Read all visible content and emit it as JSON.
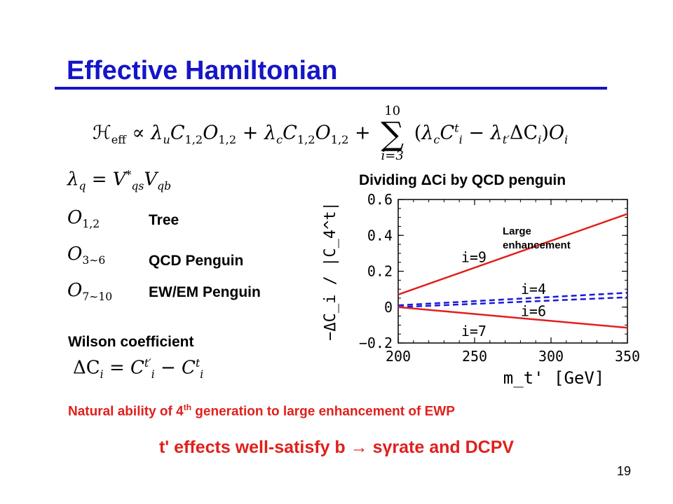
{
  "slide": {
    "title": "Effective Hamiltonian",
    "hamiltonian": {
      "lhs": "ℋ",
      "lhs_sub": "eff",
      "prop": "∝",
      "term1": "λ",
      "term1_sub": "u",
      "c12": "C",
      "c12_sub": "1,2",
      "o12": "O",
      "o12_sub": "1,2",
      "plus": "+",
      "term2": "λ",
      "term2_sub": "c",
      "sum_upper": "10",
      "sum_symbol": "∑",
      "sum_lower": "i=3",
      "paren_open": "(",
      "lam_c": "λ",
      "lam_c_sub": "c",
      "ci": "C",
      "ci_sub": "i",
      "ci_sup": "t",
      "minus": "−",
      "lam_tp": "λ",
      "lam_tp_sub": "t′",
      "delta_ci": "ΔC",
      "delta_ci_sub": "i",
      "paren_close": ")",
      "oi": "O",
      "oi_sub": "i"
    },
    "lambda_def": {
      "lhs": "λ",
      "lhs_sub": "q",
      "eq": "=",
      "v1": "V",
      "v1_sup": "*",
      "v1_sub": "qs",
      "v2": "V",
      "v2_sub": "qb"
    },
    "operators": [
      {
        "symbol": "O",
        "sub": "1,2",
        "label": "Tree"
      },
      {
        "symbol": "O",
        "sub": "3∼6",
        "label": "QCD Penguin"
      },
      {
        "symbol": "O",
        "sub": "7∼10",
        "label": "EW/EM Penguin"
      }
    ],
    "wilson": {
      "label": "Wilson coefficient",
      "lhs": "ΔC",
      "lhs_sub": "i",
      "eq": "=",
      "c1": "C",
      "c1_sub": "i",
      "c1_sup": "t′",
      "minus": "−",
      "c2": "C",
      "c2_sub": "i",
      "c2_sup": "t"
    },
    "note": {
      "part1": "Natural ability of 4",
      "sup": "th",
      "part2": " generation  to  large enhancement of EWP"
    },
    "conclusion": "t' effects well-satisfy b → sγrate and DCPV",
    "page_number": "19"
  },
  "chart_data": {
    "type": "line",
    "title": "Dividing ΔCi by QCD penguin",
    "xlabel": "m_t' [GeV]",
    "ylabel": "−ΔC_i / |C_4^t|",
    "xlim": [
      200,
      350
    ],
    "ylim": [
      -0.2,
      0.6
    ],
    "xticks": [
      "200",
      "250",
      "300",
      "350"
    ],
    "yticks": [
      "−0.2",
      "0",
      "0.2",
      "0.4",
      "0.6"
    ],
    "annotation": "Large enhancement",
    "colors": {
      "red": "#e0201c",
      "blue": "#1a1ad8"
    },
    "series": [
      {
        "name": "i=9",
        "color": "#e0201c",
        "dash": false,
        "x": [
          200,
          350
        ],
        "y": [
          0.07,
          0.52
        ]
      },
      {
        "name": "i=4",
        "color": "#1a1ad8",
        "dash": true,
        "x": [
          200,
          350
        ],
        "y": [
          0.01,
          0.08
        ]
      },
      {
        "name": "i=6",
        "color": "#1a1ad8",
        "dash": true,
        "x": [
          200,
          350
        ],
        "y": [
          0.0,
          0.055
        ]
      },
      {
        "name": "i=7",
        "color": "#e0201c",
        "dash": false,
        "x": [
          200,
          350
        ],
        "y": [
          0.0,
          -0.115
        ]
      }
    ]
  }
}
